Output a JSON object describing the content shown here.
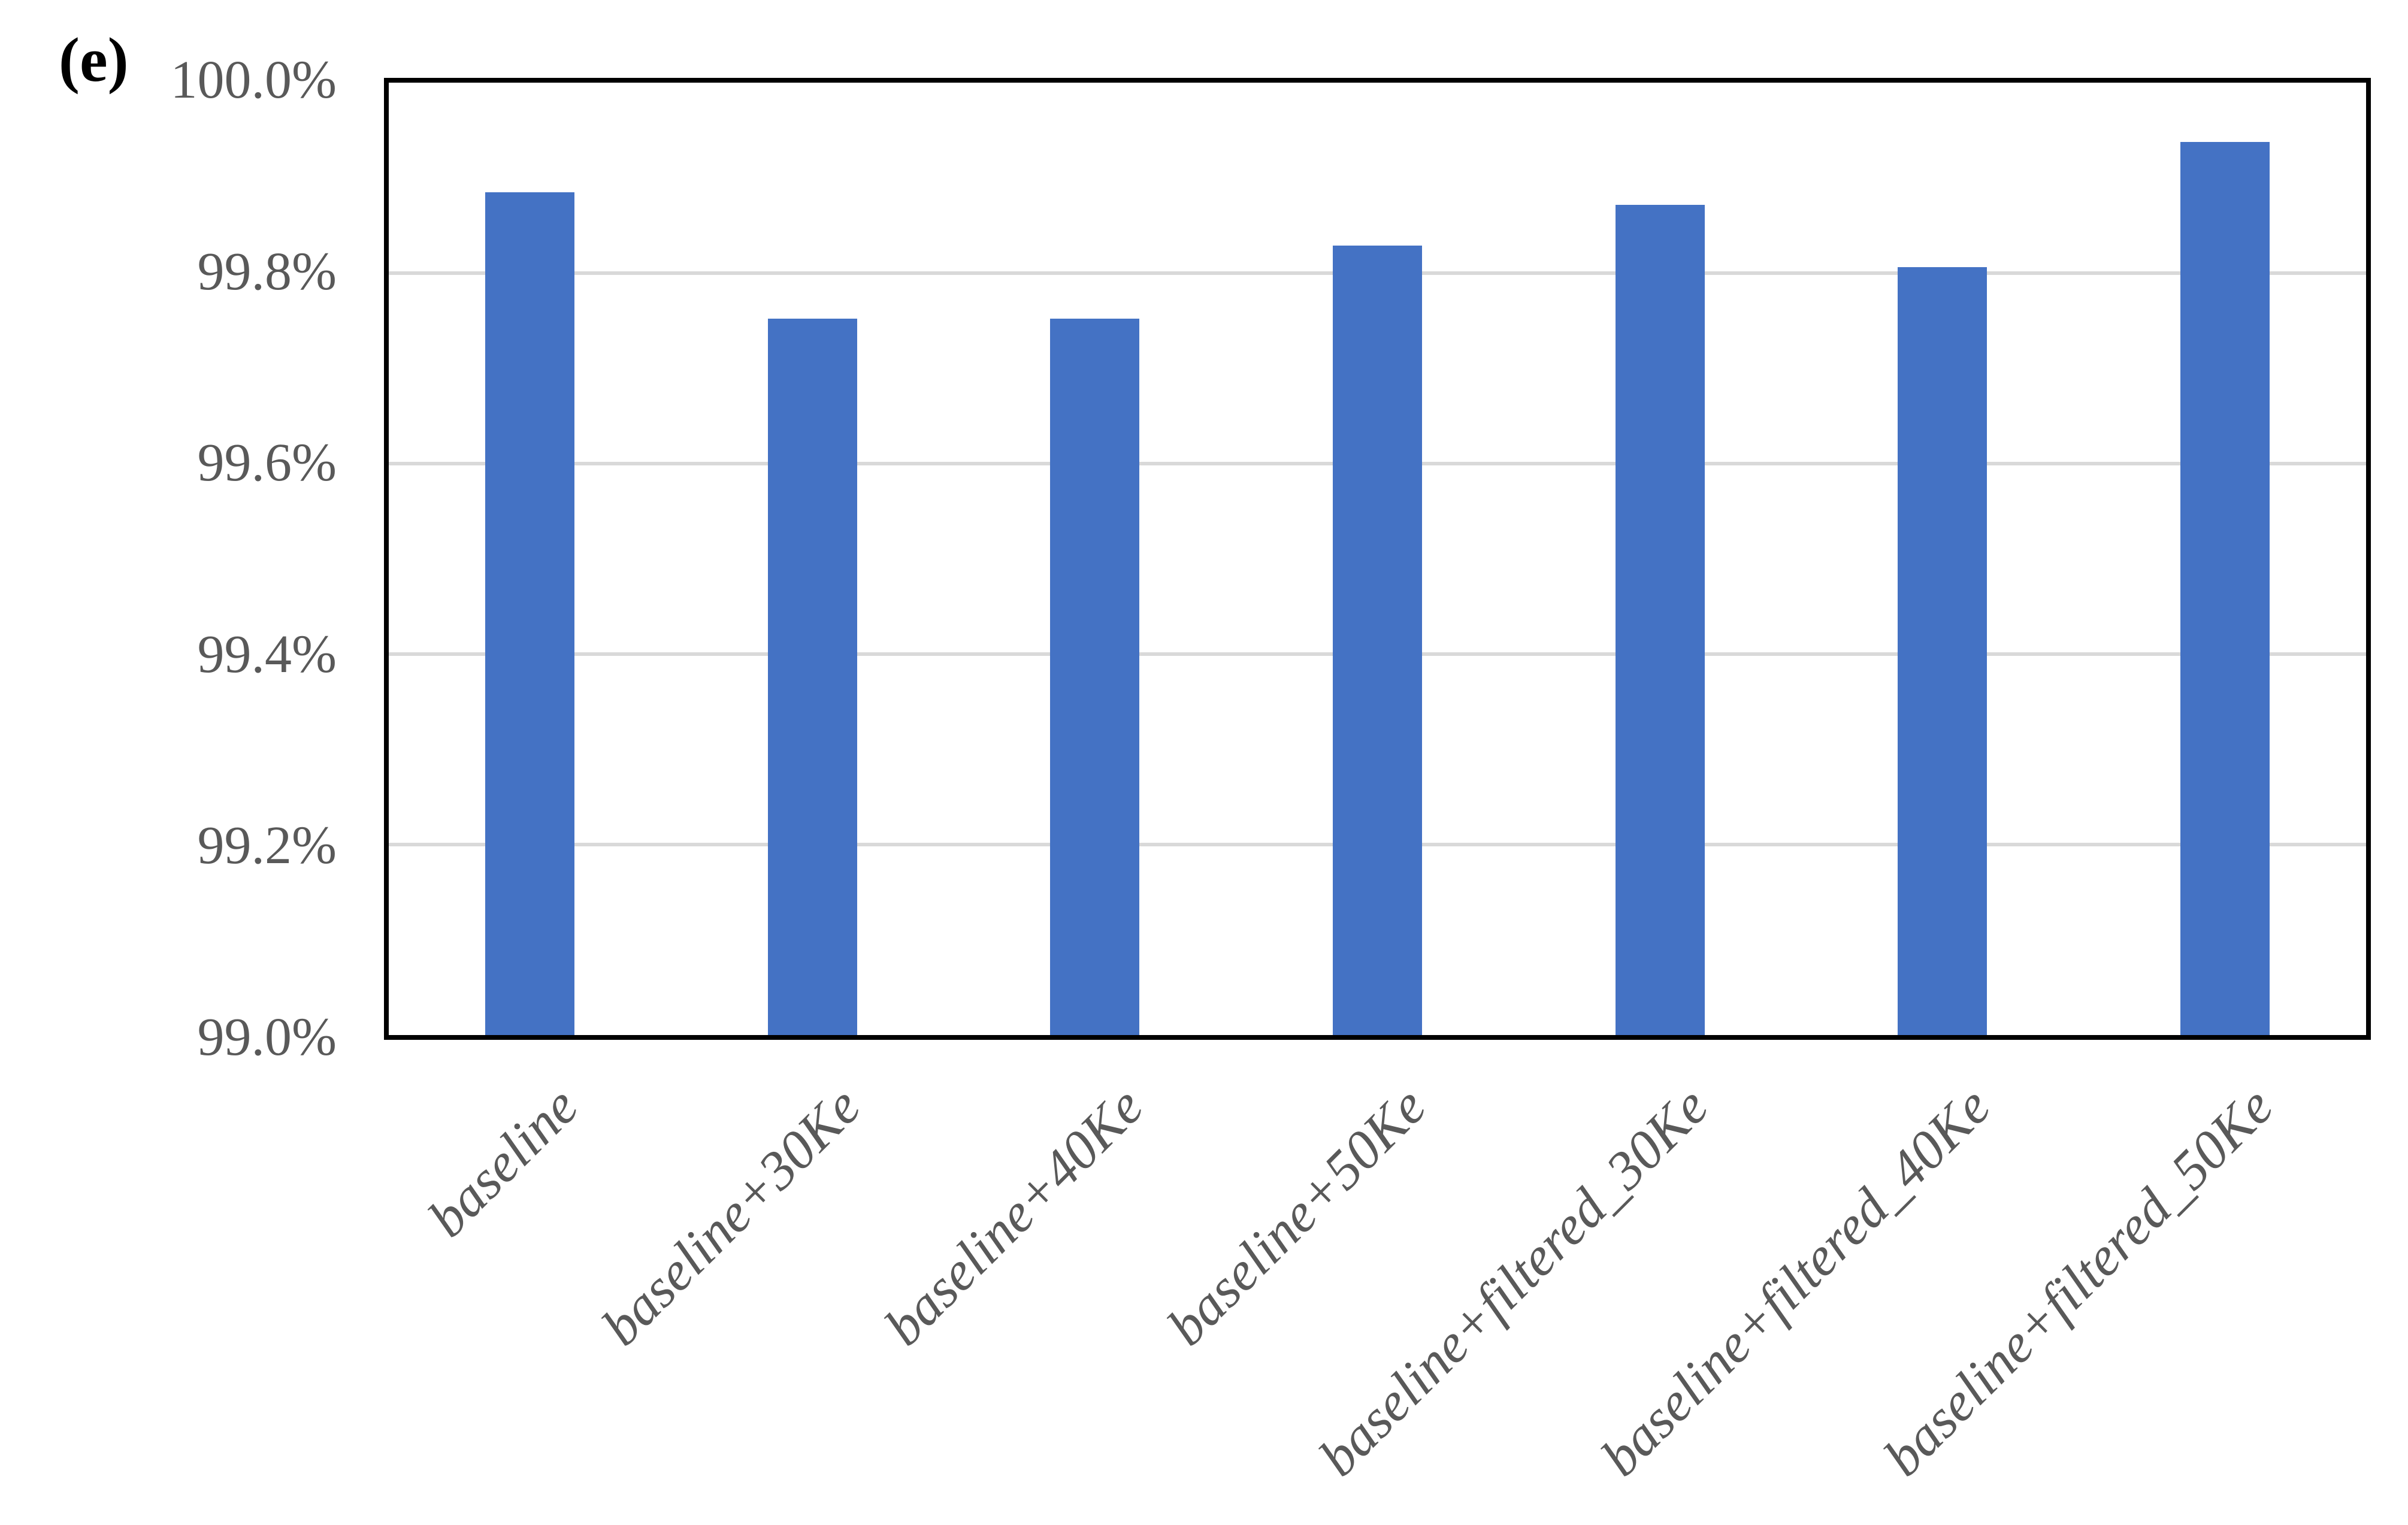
{
  "figure_label": "(e)",
  "colors": {
    "bar": "#4472C4",
    "gridline": "#D9D9D9",
    "axis_border": "#000000",
    "tick_text": "#595959",
    "figure_label_color": "#000000",
    "background": "#FFFFFF"
  },
  "chart_data": {
    "type": "bar",
    "title": "",
    "xlabel": "",
    "ylabel": "",
    "categories": [
      "baseline",
      "baseline+30Ke",
      "baseline+40Ke",
      "baseline+50Ke",
      "baseline+filtered_30Ke",
      "baseline+filtered_40Ke",
      "baseline+filtered_50Ke"
    ],
    "values": [
      99.885,
      99.752,
      99.752,
      99.829,
      99.872,
      99.806,
      99.938
    ],
    "value_unit": "%",
    "ylim": [
      99.0,
      100.0
    ],
    "y_ticks": [
      "100.0%",
      "99.8%",
      "99.6%",
      "99.4%",
      "99.2%",
      "99.0%"
    ],
    "y_tick_values": [
      100.0,
      99.8,
      99.6,
      99.4,
      99.2,
      99.0
    ],
    "grid": true,
    "legend": false,
    "x_label_rotation_deg": 45,
    "bar_color": "#4472C4"
  }
}
